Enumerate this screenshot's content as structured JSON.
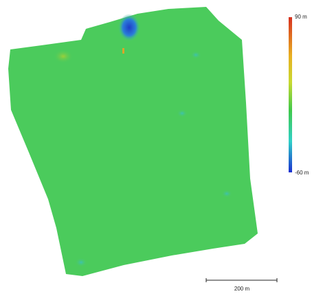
{
  "colorbar": {
    "max_label": "90 m",
    "min_label": "-60 m"
  },
  "scale_bar": {
    "label": "200 m"
  }
}
